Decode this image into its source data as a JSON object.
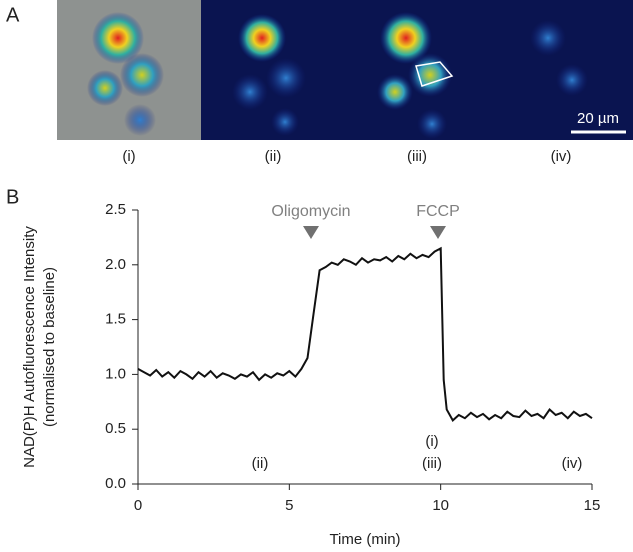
{
  "panel_a": {
    "label": "A",
    "scale_bar": "20 µm",
    "images": [
      "(i)",
      "(ii)",
      "(iii)",
      "(iv)"
    ]
  },
  "chart_data": {
    "type": "line",
    "panel_label": "B",
    "y_label": [
      "NAD(P)H Autofluorescence Intensity",
      "(normalised to baseline)"
    ],
    "x_label": "Time (min)",
    "annotations": [
      "Oligomycin",
      "FCCP",
      "(ii)",
      "(i)",
      "(iii)",
      "(iv)"
    ],
    "x": [
      0,
      0.2,
      0.4,
      0.6,
      0.8,
      1.0,
      1.2,
      1.4,
      1.6,
      1.8,
      2.0,
      2.2,
      2.4,
      2.6,
      2.8,
      3.0,
      3.2,
      3.4,
      3.6,
      3.8,
      4.0,
      4.2,
      4.4,
      4.6,
      4.8,
      5.0,
      5.2,
      5.4,
      5.6,
      5.8,
      6.0,
      6.2,
      6.4,
      6.6,
      6.8,
      7.0,
      7.2,
      7.4,
      7.6,
      7.8,
      8.0,
      8.2,
      8.4,
      8.6,
      8.8,
      9.0,
      9.2,
      9.4,
      9.6,
      9.8,
      10.0,
      10.1,
      10.2,
      10.4,
      10.6,
      10.8,
      11.0,
      11.2,
      11.4,
      11.6,
      11.8,
      12.0,
      12.2,
      12.4,
      12.6,
      12.8,
      13.0,
      13.2,
      13.4,
      13.6,
      13.8,
      14.0,
      14.2,
      14.4,
      14.6,
      14.8,
      15.0
    ],
    "values": [
      1.05,
      1.02,
      0.99,
      1.04,
      0.98,
      1.02,
      0.97,
      1.03,
      1.0,
      0.96,
      1.02,
      0.98,
      1.03,
      0.97,
      1.01,
      0.99,
      0.96,
      1.0,
      0.98,
      1.02,
      0.95,
      1.0,
      0.97,
      1.01,
      0.99,
      1.03,
      0.98,
      1.05,
      1.15,
      1.55,
      1.95,
      1.98,
      2.02,
      2.0,
      2.05,
      2.03,
      2.0,
      2.06,
      2.02,
      2.05,
      2.04,
      2.07,
      2.03,
      2.08,
      2.05,
      2.1,
      2.06,
      2.09,
      2.07,
      2.12,
      2.15,
      0.95,
      0.68,
      0.58,
      0.63,
      0.6,
      0.65,
      0.61,
      0.64,
      0.59,
      0.63,
      0.6,
      0.66,
      0.62,
      0.61,
      0.67,
      0.62,
      0.64,
      0.6,
      0.68,
      0.63,
      0.65,
      0.6,
      0.66,
      0.62,
      0.64,
      0.6
    ],
    "color": "#111111",
    "xlim": [
      0,
      15
    ],
    "xticks": [
      0,
      5,
      10,
      15
    ],
    "ylim": [
      0,
      2.5
    ],
    "yticks": [
      {
        "value": 0,
        "label": "0.0"
      },
      0.5,
      {
        "value": 1,
        "label": "1.0"
      },
      1.5,
      {
        "value": 2,
        "label": "2.0"
      },
      2.5
    ]
  }
}
